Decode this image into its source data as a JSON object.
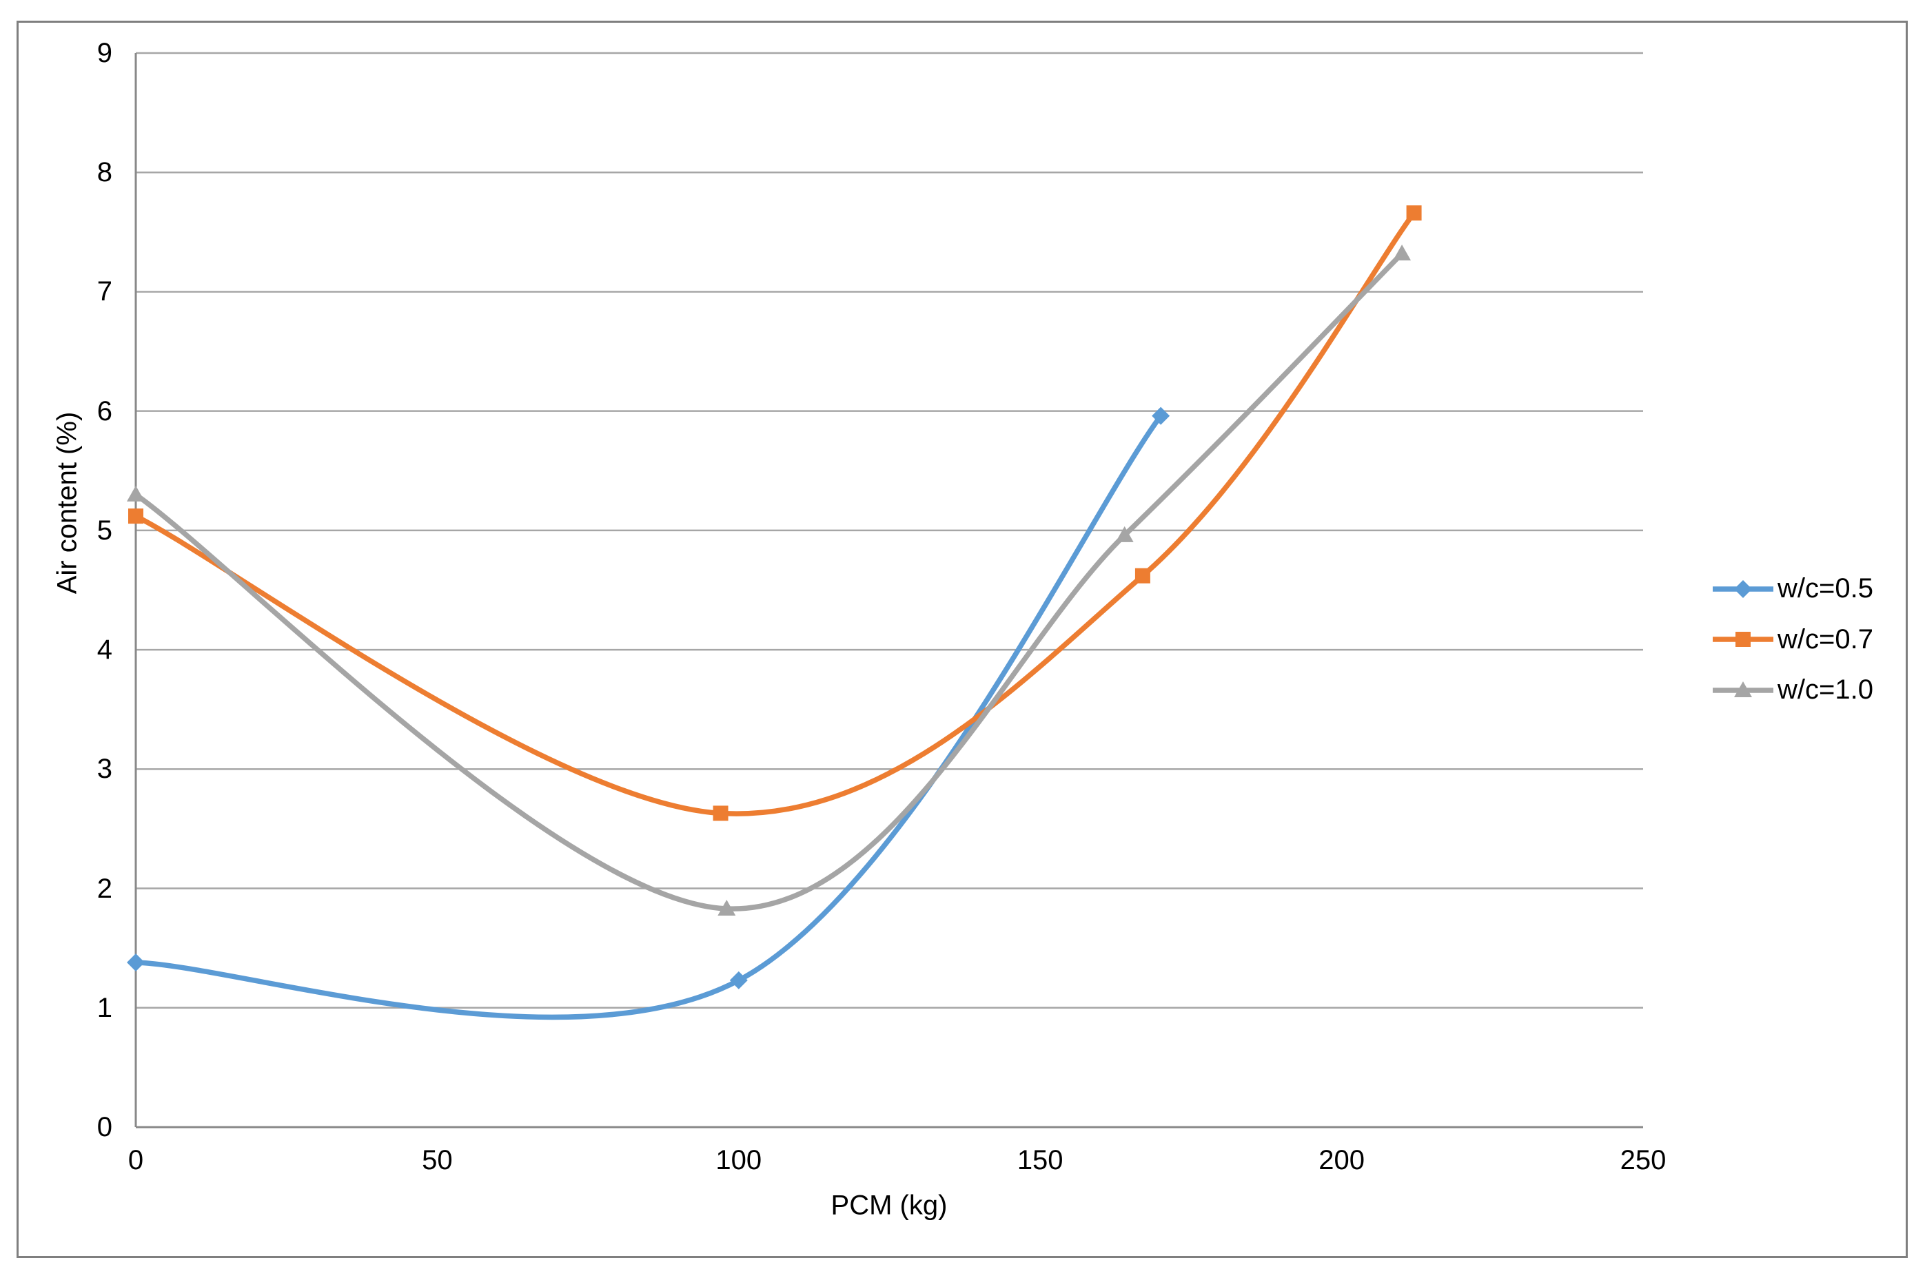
{
  "chart_data": {
    "type": "line",
    "title": "",
    "xlabel": "PCM (kg)",
    "ylabel": "Air content (%)",
    "xlim": [
      0,
      250
    ],
    "ylim": [
      0,
      9
    ],
    "xticks": [
      0,
      50,
      100,
      150,
      200,
      250
    ],
    "yticks": [
      0,
      1,
      2,
      3,
      4,
      5,
      6,
      7,
      8,
      9
    ],
    "grid": "horizontal-only",
    "smooth_lines": true,
    "legend_position": "right-center",
    "series": [
      {
        "name": "w/c=0.5",
        "color": "#5B9BD5",
        "marker": "diamond",
        "points": [
          [
            0,
            1.38
          ],
          [
            100,
            1.23
          ],
          [
            170,
            5.96
          ]
        ]
      },
      {
        "name": "w/c=0.7",
        "color": "#ED7D31",
        "marker": "square",
        "points": [
          [
            0,
            5.12
          ],
          [
            97,
            2.63
          ],
          [
            167,
            4.62
          ],
          [
            212,
            7.66
          ]
        ]
      },
      {
        "name": "w/c=1.0",
        "color": "#A5A5A5",
        "marker": "triangle",
        "points": [
          [
            0,
            5.3
          ],
          [
            98,
            1.83
          ],
          [
            164,
            4.96
          ],
          [
            210,
            7.32
          ]
        ]
      }
    ]
  },
  "colors": {
    "background": "#FFFFFF",
    "gridline": "#A6A6A6",
    "axis_line": "#898989",
    "outer_border": "#7F7F7F",
    "text": "#000000"
  }
}
